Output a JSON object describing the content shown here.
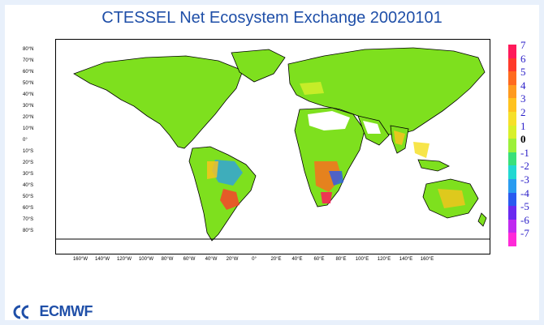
{
  "title": "CTESSEL Net Ecosystem Exchange 20020101",
  "latitude_labels": [
    "80°N",
    "70°N",
    "60°N",
    "50°N",
    "40°N",
    "30°N",
    "20°N",
    "10°N",
    "0°",
    "10°S",
    "20°S",
    "30°S",
    "40°S",
    "50°S",
    "60°S",
    "70°S",
    "80°S"
  ],
  "longitude_labels": [
    "160°W",
    "140°W",
    "120°W",
    "100°W",
    "80°W",
    "60°W",
    "40°W",
    "20°W",
    "0°",
    "20°E",
    "40°E",
    "60°E",
    "80°E",
    "100°E",
    "120°E",
    "140°E",
    "160°E"
  ],
  "colorbar": {
    "labels": [
      "7",
      "6",
      "5",
      "4",
      "3",
      "2",
      "1",
      "0",
      "-1",
      "-2",
      "-3",
      "-4",
      "-5",
      "-6",
      "-7"
    ],
    "colors": [
      "#ff1a5a",
      "#ff3a2a",
      "#ff6a1e",
      "#ff9a1e",
      "#ffc21e",
      "#f6e02a",
      "#d8f02a",
      "#9cf03a",
      "#3ae07a",
      "#22d8d2",
      "#2a9cf0",
      "#2a5af0",
      "#6a2af0",
      "#c02af0",
      "#ff2ad8"
    ]
  },
  "map_colors": {
    "land": "#7ee01e",
    "coast": "#000000",
    "snow": "#ffffff",
    "ocean": "#ffffff"
  },
  "logo": {
    "text": "ECMWF"
  }
}
